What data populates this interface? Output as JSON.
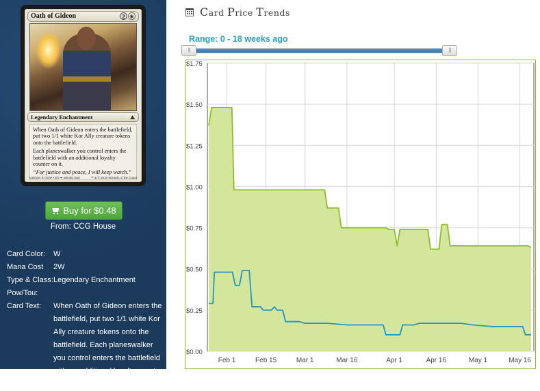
{
  "card": {
    "name": "Oath of Gideon",
    "mana_cost_generic": "2",
    "mana_cost_color": "☀",
    "type_line": "Legendary Enchantment",
    "rules_text_1": "When Oath of Gideon enters the battlefield, put two 1/1 white Kor Ally creature tokens onto the battlefield.",
    "rules_text_2": "Each planeswalker you control enters the battlefield with an additional loyalty counter on it.",
    "flavor_text": "“For justice and peace, I will keep watch.”",
    "collector_info": "030/184 R  OGW • EN  ✒ Wesley Burt",
    "copyright": "™ & © 2016 Wizards of the Coast"
  },
  "buy": {
    "label": "Buy for $0.48",
    "from_text": "From: CCG House",
    "color": "#5cb247"
  },
  "details": [
    {
      "label": "Card Color:",
      "value": "W"
    },
    {
      "label": "Mana Cost",
      "value": "2W"
    },
    {
      "label": "Type & Class:",
      "value": "Legendary Enchantment"
    },
    {
      "label": "Pow/Tou:",
      "value": ""
    },
    {
      "label": "Card Text:",
      "value": "When Oath of Gideon enters the battlefield, put two 1/1 white Kor Ally creature tokens onto the battlefield. Each planeswalker you control enters the battlefield with an additional loyalty counter on it."
    }
  ],
  "trends": {
    "heading_first": "C",
    "heading_rest": "ard ",
    "heading_p": "P",
    "heading_rest2": "rice ",
    "heading_t": "T",
    "heading_rest3": "rends",
    "range_label": "Range: 0 - 18 weeks ago"
  },
  "chart_data": {
    "type": "area",
    "ylim": [
      0,
      1.75
    ],
    "y_ticks": [
      "$0.00",
      "$0.25",
      "$0.50",
      "$0.75",
      "$1.00",
      "$1.25",
      "$1.50",
      "$1.75"
    ],
    "x_ticks": [
      "Feb 1",
      "Feb 15",
      "Mar 1",
      "Mar 16",
      "Apr 1",
      "Apr 16",
      "May 1",
      "May 16"
    ],
    "x_tick_days": [
      0,
      14,
      28,
      43,
      60,
      75,
      90,
      105
    ],
    "xlim_days": [
      -7,
      110
    ],
    "colors": {
      "green": "#8cbe2a",
      "green_fill": "#d3e69c",
      "blue": "#2596be"
    },
    "series": [
      {
        "points": [
          [
            -6.5,
            1.37
          ],
          [
            -5.5,
            1.48
          ],
          [
            -4,
            1.48
          ],
          [
            1,
            1.48
          ],
          [
            1.8,
            1.48
          ],
          [
            2.5,
            0.98
          ],
          [
            8,
            0.98
          ],
          [
            15,
            0.98
          ],
          [
            21,
            0.98
          ],
          [
            28,
            0.98
          ],
          [
            33,
            0.98
          ],
          [
            35,
            0.98
          ],
          [
            36,
            0.87
          ],
          [
            39,
            0.87
          ],
          [
            40,
            0.87
          ],
          [
            41,
            0.75
          ],
          [
            44,
            0.75
          ],
          [
            50,
            0.75
          ],
          [
            57,
            0.75
          ],
          [
            58,
            0.74
          ],
          [
            60,
            0.74
          ],
          [
            61,
            0.64
          ],
          [
            62,
            0.74
          ],
          [
            66,
            0.74
          ],
          [
            71,
            0.74
          ],
          [
            72,
            0.74
          ],
          [
            73,
            0.62
          ],
          [
            76,
            0.62
          ],
          [
            77,
            0.77
          ],
          [
            79,
            0.77
          ],
          [
            80,
            0.64
          ],
          [
            88,
            0.64
          ],
          [
            95,
            0.64
          ],
          [
            103,
            0.64
          ],
          [
            108,
            0.64
          ],
          [
            109,
            0.63
          ]
        ]
      },
      {
        "points": [
          [
            -6.5,
            0.29
          ],
          [
            -5,
            0.29
          ],
          [
            -4.5,
            0.48
          ],
          [
            0,
            0.48
          ],
          [
            2,
            0.48
          ],
          [
            3,
            0.4
          ],
          [
            4.5,
            0.4
          ],
          [
            5.5,
            0.49
          ],
          [
            8,
            0.49
          ],
          [
            9,
            0.27
          ],
          [
            12,
            0.27
          ],
          [
            13,
            0.25
          ],
          [
            16,
            0.25
          ],
          [
            17,
            0.27
          ],
          [
            18,
            0.25
          ],
          [
            20,
            0.25
          ],
          [
            21,
            0.18
          ],
          [
            26,
            0.18
          ],
          [
            28,
            0.17
          ],
          [
            36,
            0.17
          ],
          [
            43,
            0.16
          ],
          [
            52,
            0.16
          ],
          [
            56,
            0.16
          ],
          [
            57,
            0.1
          ],
          [
            62,
            0.1
          ],
          [
            63,
            0.16
          ],
          [
            67,
            0.16
          ],
          [
            69,
            0.17
          ],
          [
            77,
            0.17
          ],
          [
            84,
            0.17
          ],
          [
            88,
            0.16
          ],
          [
            95,
            0.15
          ],
          [
            103,
            0.15
          ],
          [
            106,
            0.15
          ],
          [
            107,
            0.1
          ],
          [
            109,
            0.1
          ]
        ]
      }
    ]
  }
}
